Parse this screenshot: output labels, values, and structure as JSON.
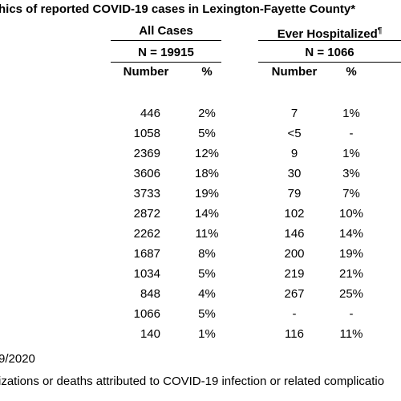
{
  "title": "hics of reported COVID-19 cases in Lexington-Fayette County*",
  "groups": [
    {
      "label": "All Cases",
      "note": "",
      "n": "N = 19915"
    },
    {
      "label": "Ever Hospitalized",
      "note": "¶",
      "n": "N = 1066"
    }
  ],
  "columns": [
    "Number",
    "%",
    "Number",
    "%"
  ],
  "rows": [
    [
      "446",
      "2%",
      "7",
      "1%"
    ],
    [
      "1058",
      "5%",
      "<5",
      "-"
    ],
    [
      "2369",
      "12%",
      "9",
      "1%"
    ],
    [
      "3606",
      "18%",
      "30",
      "3%"
    ],
    [
      "3733",
      "19%",
      "79",
      "7%"
    ],
    [
      "2872",
      "14%",
      "102",
      "10%"
    ],
    [
      "2262",
      "11%",
      "146",
      "14%"
    ],
    [
      "1687",
      "8%",
      "200",
      "19%"
    ],
    [
      "1034",
      "5%",
      "219",
      "21%"
    ],
    [
      "848",
      "4%",
      "267",
      "25%"
    ],
    [
      "1066",
      "5%",
      "-",
      "-"
    ],
    [
      "140",
      "1%",
      "116",
      "11%"
    ]
  ],
  "footnotes": [
    "9/2020",
    "izations or deaths attributed to COVID-19 infection or related complicatio"
  ]
}
